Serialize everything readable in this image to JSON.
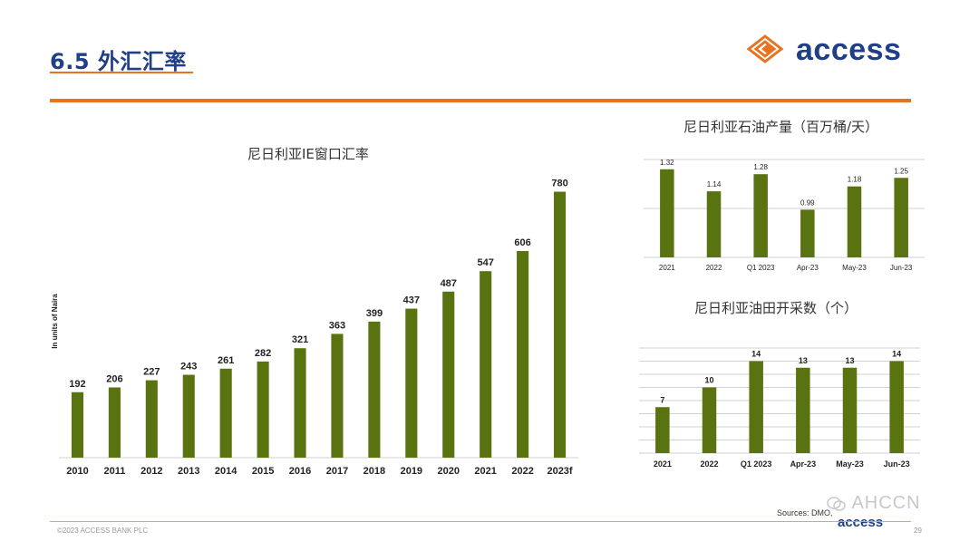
{
  "slide": {
    "title": "6.5 外汇汇率",
    "footer_left": "©2023 ACCESS BANK PLC",
    "page_number": "29",
    "sources": "Sources: DMO, ",
    "watermark": "AHCCN",
    "logo_text": "access",
    "footer_logo_text": "access"
  },
  "colors": {
    "bar": "#5a7311",
    "accent_orange": "#e8731f",
    "brand_blue": "#1f3f86",
    "grid": "#d0d0d0"
  },
  "icons": [
    "access-logo-icon",
    "wechat-icon"
  ],
  "chart_data": [
    {
      "type": "bar",
      "title": "尼日利亚IE窗口汇率",
      "ylabel": "In units of Naira",
      "categories": [
        "2010",
        "2011",
        "2012",
        "2013",
        "2014",
        "2015",
        "2016",
        "2017",
        "2018",
        "2019",
        "2020",
        "2021",
        "2022",
        "2023f"
      ],
      "values": [
        192,
        206,
        227,
        243,
        261,
        282,
        321,
        363,
        399,
        437,
        487,
        547,
        606,
        780
      ],
      "ylim": [
        0,
        800
      ],
      "grid": false
    },
    {
      "type": "bar",
      "title": "尼日利亚石油产量（百万桶/天）",
      "categories": [
        "2021",
        "2022",
        "Q1 2023",
        "Apr-23",
        "May-23",
        "Jun-23"
      ],
      "values": [
        1.32,
        1.14,
        1.28,
        0.99,
        1.18,
        1.25
      ],
      "ylim": [
        0.6,
        1.4
      ],
      "grid": true
    },
    {
      "type": "bar",
      "title": "尼日利亚油田开采数（个）",
      "categories": [
        "2021",
        "2022",
        "Q1 2023",
        "Apr-23",
        "May-23",
        "Jun-23"
      ],
      "values": [
        7,
        10,
        14,
        13,
        13,
        14
      ],
      "ylim": [
        0,
        16
      ],
      "grid": true
    }
  ]
}
